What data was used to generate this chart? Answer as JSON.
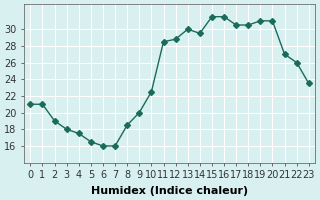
{
  "x": [
    0,
    1,
    2,
    3,
    4,
    5,
    6,
    7,
    8,
    9,
    10,
    11,
    12,
    13,
    14,
    15,
    16,
    17,
    18,
    19,
    20,
    21,
    22,
    23
  ],
  "y": [
    21,
    21,
    19,
    18,
    17.5,
    16.5,
    16,
    16,
    18.5,
    20,
    22.5,
    28.5,
    28.8,
    30,
    29.5,
    31.5,
    31.5,
    30.5,
    30.5,
    31,
    31,
    27,
    26,
    23.5
  ],
  "line_color": "#1a6b5a",
  "marker": "D",
  "marker_size": 3,
  "background_color": "#d8f0f0",
  "grid_color": "#ffffff",
  "xlabel": "Humidex (Indice chaleur)",
  "ylim": [
    14,
    33
  ],
  "yticks": [
    16,
    18,
    20,
    22,
    24,
    26,
    28,
    30
  ],
  "xticks": [
    0,
    1,
    2,
    3,
    4,
    5,
    6,
    7,
    8,
    9,
    10,
    11,
    12,
    13,
    14,
    15,
    16,
    17,
    18,
    19,
    20,
    21,
    22,
    23
  ],
  "xlabel_fontsize": 8,
  "tick_fontsize": 7
}
